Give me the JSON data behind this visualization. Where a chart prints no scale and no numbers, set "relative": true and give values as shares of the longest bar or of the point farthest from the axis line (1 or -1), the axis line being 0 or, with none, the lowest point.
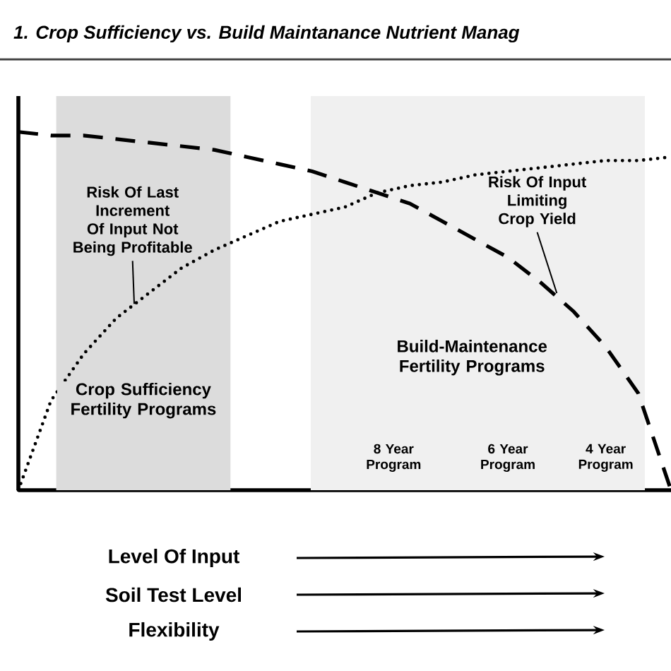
{
  "chart_data": {
    "type": "line",
    "relative": true,
    "title": "1. Crop Sufficiency vs. Build Maintanance Nutrient Manag",
    "xlabel": "Level Of Input",
    "categories": [
      null,
      null,
      null,
      null,
      null,
      null,
      null,
      null,
      null,
      null,
      null,
      null,
      null,
      null,
      null,
      null,
      null,
      null,
      null,
      null,
      null
    ],
    "series": [
      {
        "color": "#000000",
        "line_style": "dashed",
        "values": [
          1.0,
          0.99,
          0.99,
          0.98,
          0.97,
          0.96,
          0.95,
          0.93,
          0.91,
          0.89,
          0.86,
          0.83,
          0.8,
          0.75,
          0.7,
          0.65,
          0.58,
          0.5,
          0.4,
          0.27,
          0
        ]
      },
      {
        "color": "#000000",
        "line_style": "dotted",
        "values": [
          0,
          0.25,
          0.38,
          0.48,
          0.55,
          0.62,
          0.67,
          0.71,
          0.75,
          0.77,
          0.79,
          0.83,
          0.85,
          0.86,
          0.88,
          0.89,
          0.9,
          0.91,
          0.92,
          0.92,
          0.93
        ]
      }
    ],
    "annotations": [
      "Risk Of Last Increment Of Input Not Being Profitable",
      "Risk Of Input Limiting Crop Yield",
      "Crop Sufficiency Fertility Programs",
      "Build-Maintenance Fertility Programs",
      "8 Year Program",
      "6 Year Program",
      "4 Year Program",
      "Soil Test Level",
      "Flexibility"
    ]
  }
}
